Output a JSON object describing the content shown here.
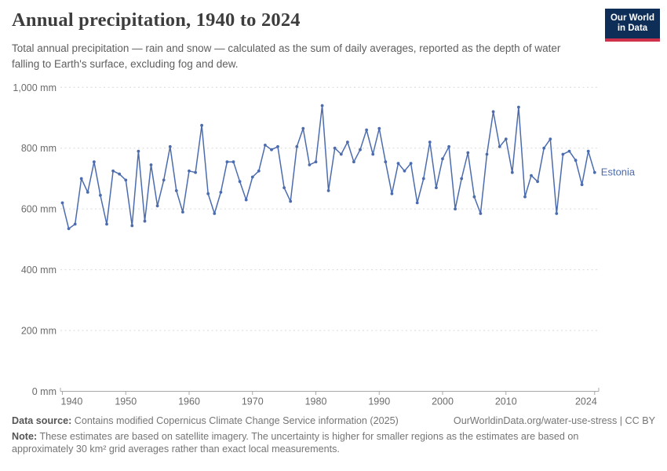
{
  "header": {
    "title": "Annual precipitation, 1940 to 2024",
    "subtitle": "Total annual precipitation — rain and snow — calculated as the sum of daily averages, reported as the depth of water falling to Earth's surface, excluding fog and dew.",
    "logo": {
      "line1": "Our World",
      "line2": "in Data"
    }
  },
  "chart_data": {
    "type": "line",
    "title": "Annual precipitation, 1940 to 2024",
    "xlabel": "",
    "ylabel": "",
    "unit": "mm",
    "xlim": [
      1940,
      2024
    ],
    "ylim": [
      0,
      1000
    ],
    "grid": "horizontal-dashed",
    "legend_position": "end-of-line-label",
    "xticks": [
      1940,
      1950,
      1960,
      1970,
      1980,
      1990,
      2000,
      2010,
      2024
    ],
    "yticks": [
      0,
      200,
      400,
      600,
      800,
      1000
    ],
    "ytick_labels": [
      "0 mm",
      "200 mm",
      "400 mm",
      "600 mm",
      "800 mm",
      "1,000 mm"
    ],
    "line_color": "#4c6cae",
    "series": [
      {
        "name": "Estonia",
        "x": [
          1940,
          1941,
          1942,
          1943,
          1944,
          1945,
          1946,
          1947,
          1948,
          1949,
          1950,
          1951,
          1952,
          1953,
          1954,
          1955,
          1956,
          1957,
          1958,
          1959,
          1960,
          1961,
          1962,
          1963,
          1964,
          1965,
          1966,
          1967,
          1968,
          1969,
          1970,
          1971,
          1972,
          1973,
          1974,
          1975,
          1976,
          1977,
          1978,
          1979,
          1980,
          1981,
          1982,
          1983,
          1984,
          1985,
          1986,
          1987,
          1988,
          1989,
          1990,
          1991,
          1992,
          1993,
          1994,
          1995,
          1996,
          1997,
          1998,
          1999,
          2000,
          2001,
          2002,
          2003,
          2004,
          2005,
          2006,
          2007,
          2008,
          2009,
          2010,
          2011,
          2012,
          2013,
          2014,
          2015,
          2016,
          2017,
          2018,
          2019,
          2020,
          2021,
          2022,
          2023,
          2024
        ],
        "values": [
          620,
          535,
          550,
          700,
          655,
          755,
          645,
          550,
          725,
          715,
          695,
          545,
          790,
          560,
          745,
          610,
          695,
          805,
          660,
          590,
          725,
          720,
          875,
          650,
          585,
          655,
          755,
          755,
          690,
          630,
          705,
          725,
          810,
          795,
          805,
          670,
          625,
          805,
          865,
          745,
          755,
          940,
          660,
          800,
          780,
          820,
          755,
          795,
          860,
          780,
          865,
          755,
          650,
          750,
          725,
          750,
          620,
          700,
          820,
          670,
          765,
          805,
          600,
          700,
          785,
          640,
          585,
          780,
          920,
          805,
          830,
          720,
          935,
          640,
          710,
          690,
          800,
          830,
          585,
          780,
          790,
          760,
          680,
          790,
          720
        ]
      }
    ]
  },
  "footer": {
    "datasource_label": "Data source:",
    "datasource_text": "Contains modified Copernicus Climate Change Service information (2025)",
    "link": "OurWorldinData.org/water-use-stress | CC BY",
    "note_label": "Note:",
    "note_text": "These estimates are based on satellite imagery. The uncertainty is higher for smaller regions as the estimates are based on approximately 30 km² grid averages rather than exact local measurements."
  }
}
